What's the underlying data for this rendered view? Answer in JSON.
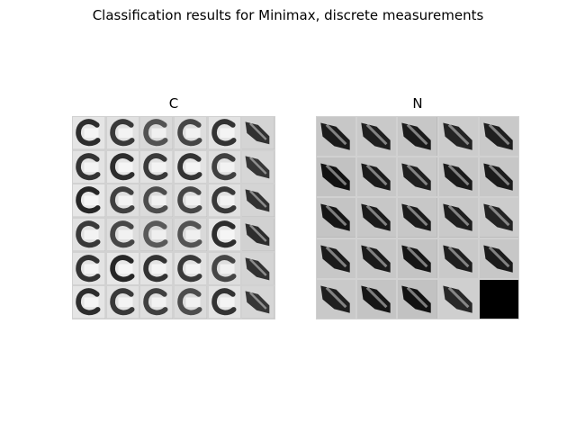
{
  "figure": {
    "title": "Classification results for Minimax, discrete measurements"
  },
  "panels": [
    {
      "title": "C",
      "rows": 6,
      "cols": 6,
      "tiles": [
        "C",
        "C",
        "C",
        "C",
        "C",
        "slash",
        "C",
        "C",
        "C",
        "C",
        "C",
        "slash",
        "C",
        "C",
        "C",
        "C",
        "C",
        "slash",
        "C",
        "C",
        "C",
        "C",
        "C",
        "slash",
        "C",
        "C",
        "C",
        "C",
        "C",
        "slash",
        "C",
        "C",
        "C",
        "C",
        "C",
        "slash"
      ],
      "tones": [
        0.35,
        0.45,
        0.65,
        0.55,
        0.4,
        0.55,
        0.4,
        0.35,
        0.45,
        0.4,
        0.5,
        0.6,
        0.3,
        0.5,
        0.6,
        0.55,
        0.45,
        0.55,
        0.45,
        0.55,
        0.7,
        0.65,
        0.35,
        0.5,
        0.4,
        0.3,
        0.4,
        0.45,
        0.55,
        0.55,
        0.35,
        0.45,
        0.5,
        0.6,
        0.4,
        0.6
      ]
    },
    {
      "title": "N",
      "rows": 5,
      "cols": 5,
      "tiles": [
        "slash",
        "slash",
        "slash",
        "slash",
        "slash",
        "slash",
        "slash",
        "slash",
        "slash",
        "slash",
        "slash",
        "slash",
        "slash",
        "slash",
        "slash",
        "slash",
        "slash",
        "slash",
        "slash",
        "slash",
        "slash",
        "slash",
        "slash",
        "slash",
        "black"
      ],
      "tones": [
        0.3,
        0.35,
        0.3,
        0.4,
        0.35,
        0.2,
        0.3,
        0.35,
        0.3,
        0.3,
        0.25,
        0.3,
        0.3,
        0.35,
        0.4,
        0.3,
        0.3,
        0.25,
        0.35,
        0.3,
        0.35,
        0.25,
        0.2,
        0.45,
        0.0
      ]
    }
  ],
  "colors": {
    "background": "#ffffff",
    "ink": "#000000"
  }
}
